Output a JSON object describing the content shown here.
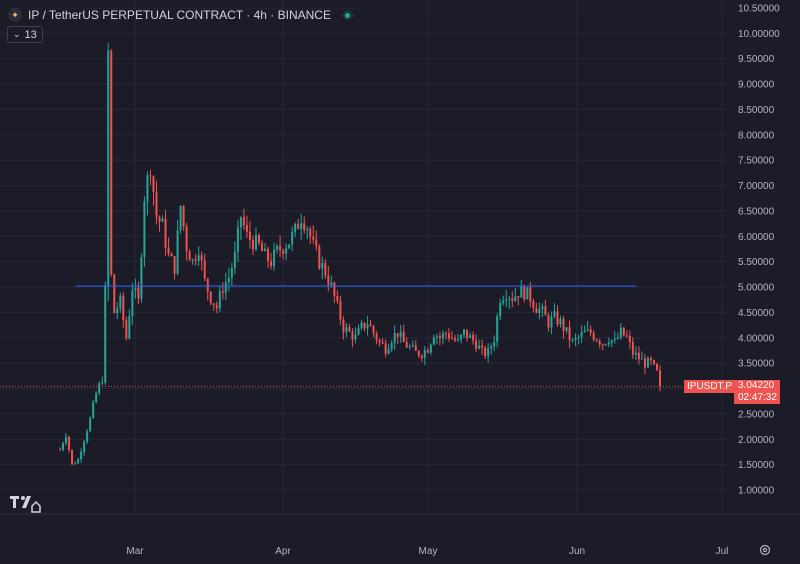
{
  "header": {
    "title": "IP / TetherUS PERPETUAL CONTRACT · 4h · BINANCE",
    "indicator_count": "13"
  },
  "price_label": {
    "symbol": "IPUSDT.P",
    "price": "3.04220",
    "countdown": "02:47:32"
  },
  "colors": {
    "background": "#1c1c28",
    "up": "#26a69a",
    "down": "#ef5350",
    "line": "#2962ff",
    "axis_text": "#b2b5be"
  },
  "chart_data": {
    "type": "candlestick",
    "title": "IP / TetherUS PERPETUAL CONTRACT · 4h · BINANCE",
    "y_ticks": [
      "10.50000",
      "10.00000",
      "9.50000",
      "9.00000",
      "8.50000",
      "8.00000",
      "7.50000",
      "7.00000",
      "6.50000",
      "6.00000",
      "5.50000",
      "5.00000",
      "4.50000",
      "4.00000",
      "3.50000",
      "3.00000",
      "2.50000",
      "2.00000",
      "1.50000",
      "1.00000"
    ],
    "x_ticks": [
      "Mar",
      "Apr",
      "May",
      "Jun",
      "Jul"
    ],
    "ylim": [
      0.5,
      10.6
    ],
    "horizontal_line": 5.02,
    "last_price": 3.0422,
    "grid": true,
    "path": [
      [
        0,
        1.8
      ],
      [
        2,
        2.1
      ],
      [
        4,
        1.5
      ],
      [
        6,
        1.6
      ],
      [
        8,
        2.0
      ],
      [
        10,
        2.4
      ],
      [
        12,
        2.9
      ],
      [
        14,
        3.2
      ],
      [
        15,
        4.9
      ],
      [
        16,
        9.6
      ],
      [
        17,
        5.2
      ],
      [
        18,
        4.5
      ],
      [
        20,
        4.7
      ],
      [
        22,
        4.0
      ],
      [
        24,
        5.0
      ],
      [
        26,
        4.7
      ],
      [
        28,
        6.8
      ],
      [
        30,
        7.4
      ],
      [
        32,
        6.4
      ],
      [
        34,
        6.2
      ],
      [
        36,
        5.6
      ],
      [
        38,
        5.4
      ],
      [
        40,
        6.6
      ],
      [
        42,
        5.8
      ],
      [
        44,
        5.5
      ],
      [
        46,
        5.8
      ],
      [
        48,
        5.1
      ],
      [
        50,
        4.8
      ],
      [
        52,
        4.6
      ],
      [
        54,
        5.0
      ],
      [
        56,
        5.2
      ],
      [
        58,
        5.6
      ],
      [
        60,
        6.4
      ],
      [
        62,
        6.0
      ],
      [
        64,
        5.9
      ],
      [
        66,
        5.8
      ],
      [
        68,
        5.6
      ],
      [
        70,
        5.5
      ],
      [
        72,
        5.7
      ],
      [
        74,
        5.8
      ],
      [
        76,
        5.9
      ],
      [
        78,
        6.1
      ],
      [
        80,
        6.4
      ],
      [
        82,
        6.2
      ],
      [
        84,
        5.8
      ],
      [
        86,
        5.5
      ],
      [
        88,
        5.3
      ],
      [
        90,
        5.0
      ],
      [
        92,
        4.6
      ],
      [
        94,
        4.2
      ],
      [
        96,
        4.1
      ],
      [
        98,
        4.0
      ],
      [
        100,
        4.2
      ],
      [
        102,
        4.3
      ],
      [
        104,
        4.1
      ],
      [
        106,
        3.9
      ],
      [
        108,
        3.8
      ],
      [
        110,
        4.0
      ],
      [
        112,
        4.1
      ],
      [
        114,
        3.9
      ],
      [
        116,
        3.8
      ],
      [
        118,
        3.7
      ],
      [
        120,
        3.7
      ],
      [
        122,
        3.8
      ],
      [
        124,
        4.1
      ],
      [
        126,
        4.0
      ],
      [
        128,
        4.1
      ],
      [
        130,
        4.0
      ],
      [
        132,
        3.9
      ],
      [
        134,
        4.1
      ],
      [
        136,
        4.0
      ],
      [
        138,
        3.9
      ],
      [
        140,
        3.7
      ],
      [
        142,
        3.7
      ],
      [
        144,
        4.0
      ],
      [
        146,
        4.8
      ],
      [
        148,
        4.9
      ],
      [
        150,
        4.8
      ],
      [
        152,
        4.9
      ],
      [
        154,
        4.9
      ],
      [
        156,
        4.8
      ],
      [
        158,
        4.6
      ],
      [
        160,
        4.5
      ],
      [
        162,
        4.3
      ],
      [
        164,
        4.4
      ],
      [
        166,
        4.3
      ],
      [
        168,
        4.1
      ],
      [
        170,
        3.9
      ],
      [
        172,
        4.0
      ],
      [
        174,
        4.1
      ],
      [
        176,
        4.1
      ],
      [
        178,
        4.0
      ],
      [
        180,
        3.9
      ],
      [
        182,
        4.0
      ],
      [
        184,
        3.9
      ],
      [
        186,
        4.1
      ],
      [
        188,
        4.0
      ],
      [
        190,
        3.7
      ],
      [
        192,
        3.6
      ],
      [
        194,
        3.5
      ],
      [
        196,
        3.5
      ],
      [
        198,
        3.3
      ],
      [
        199,
        3.04
      ]
    ]
  }
}
